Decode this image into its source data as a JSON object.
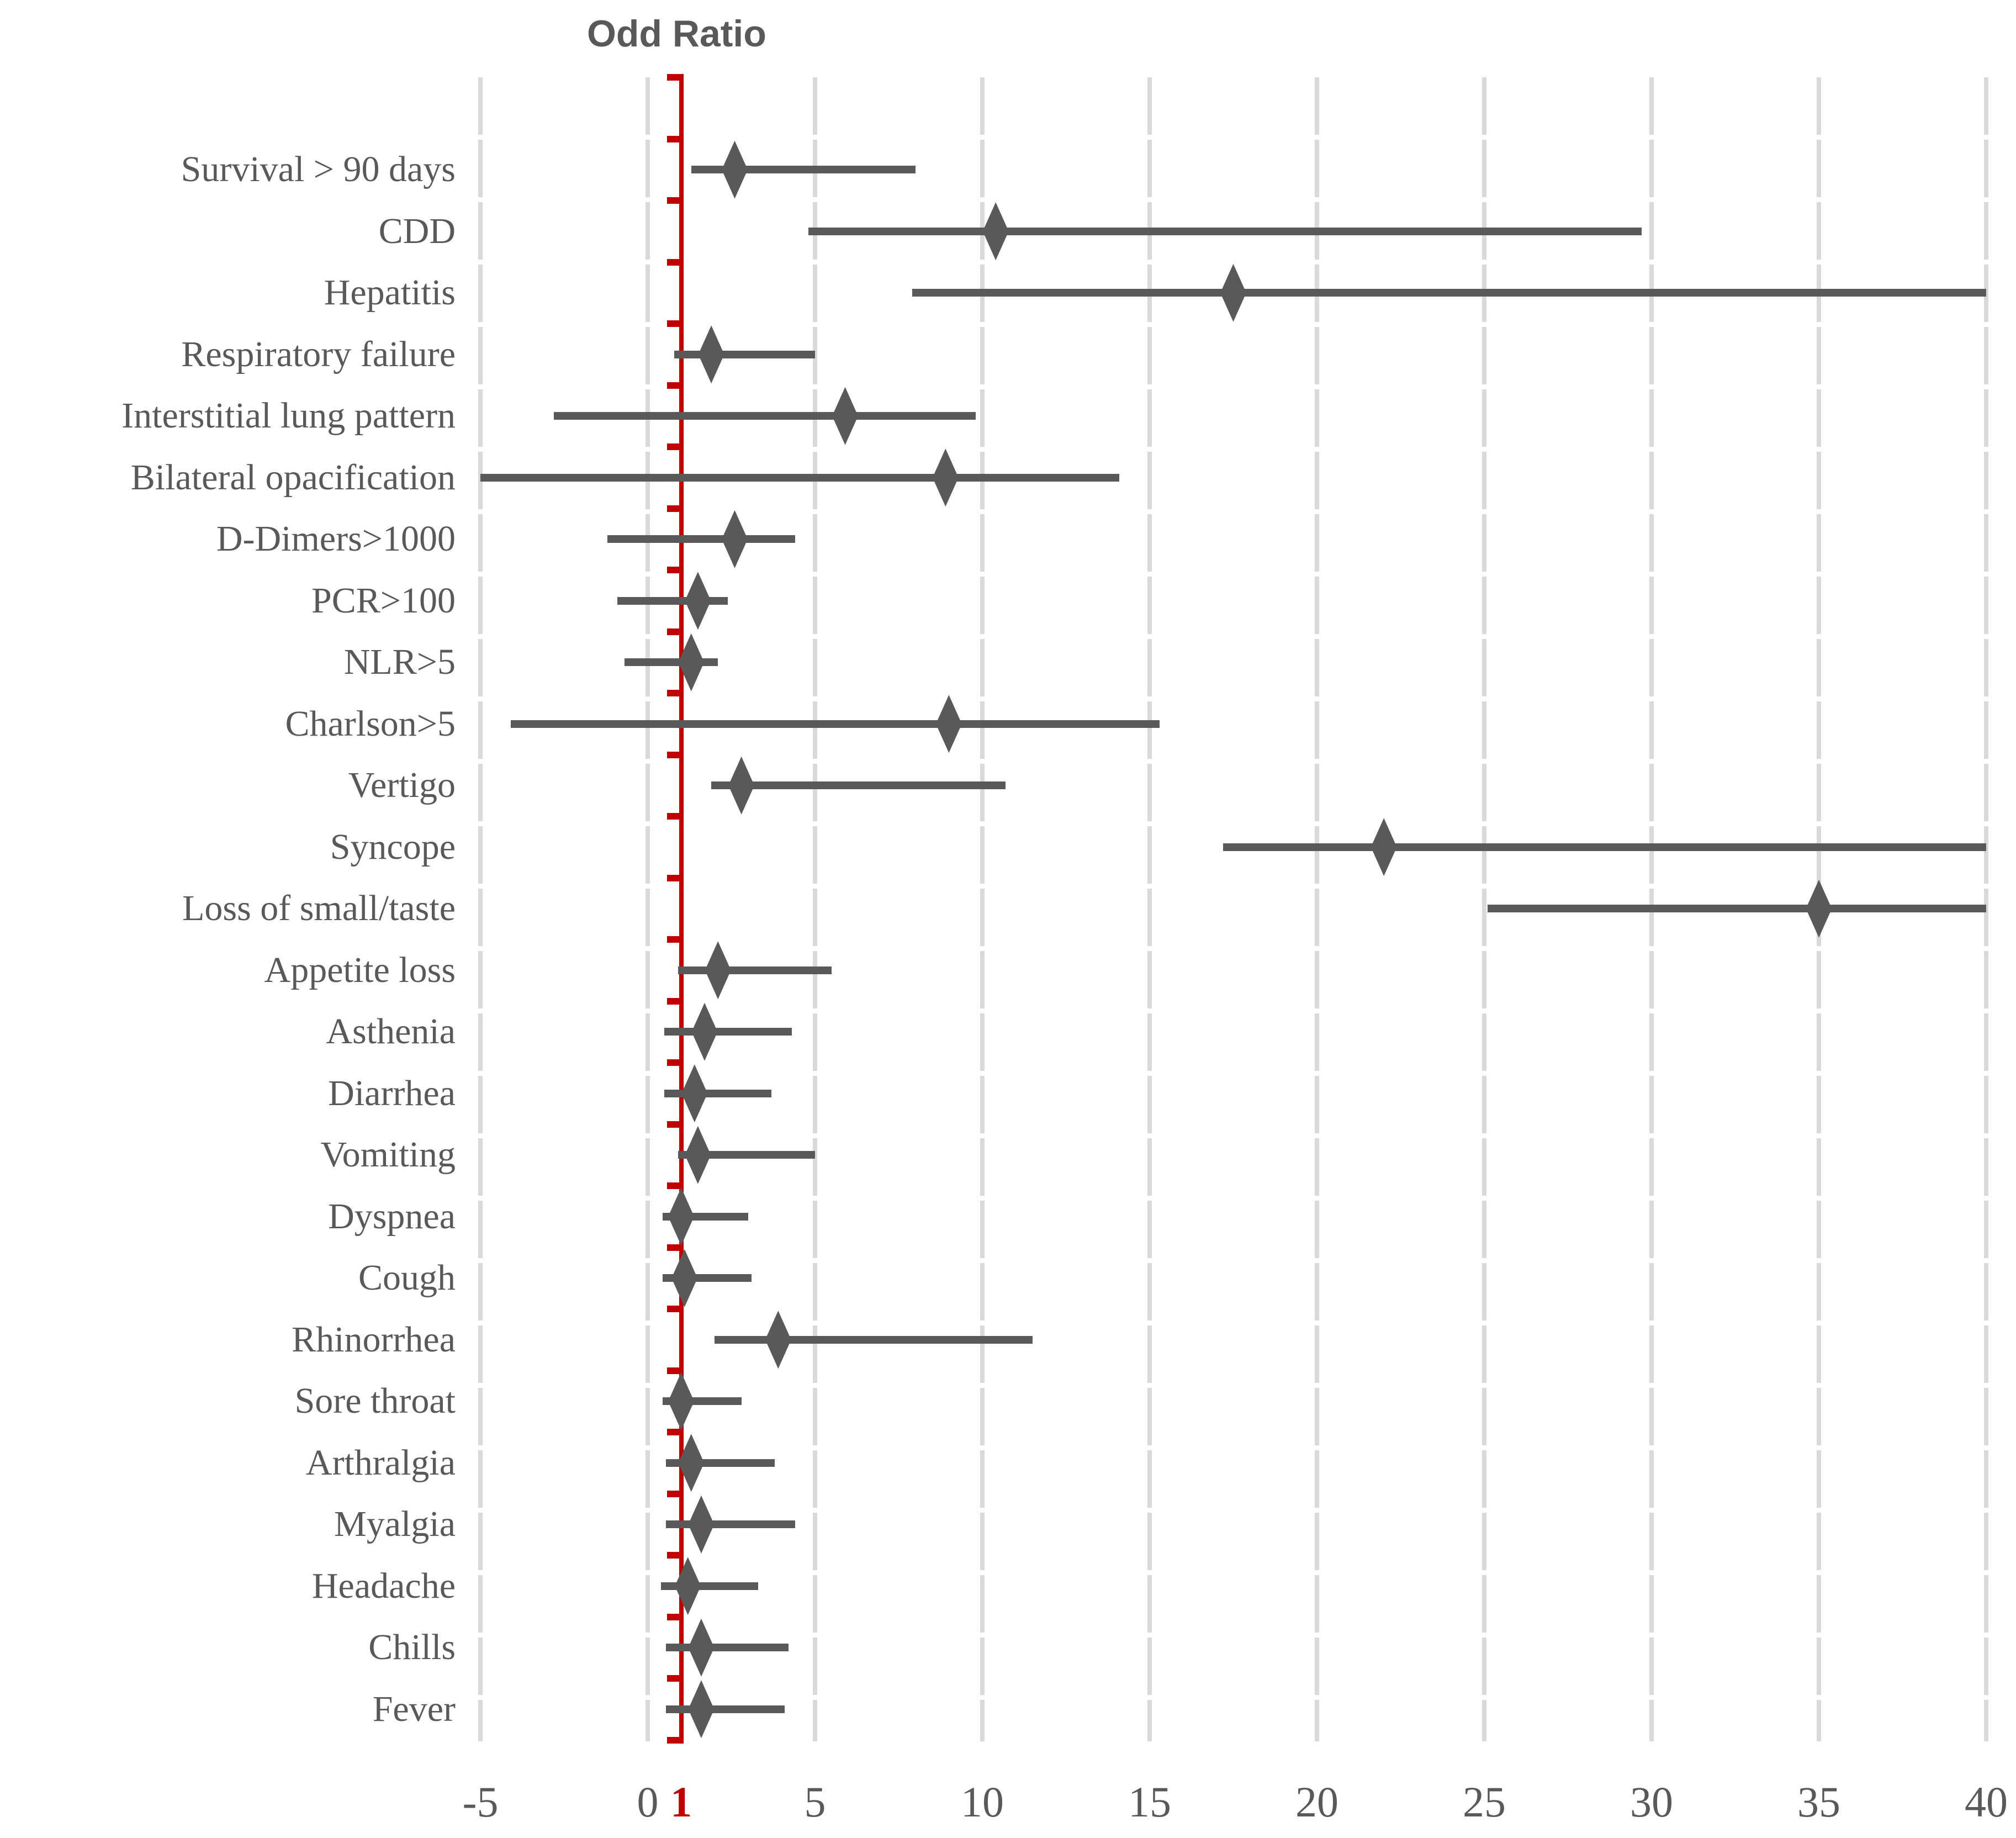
{
  "chart_data": {
    "type": "scatter",
    "subtype": "forest-plot",
    "title": "Odd Ratio",
    "xlabel": "",
    "ylabel": "",
    "xlim": [
      -5,
      40
    ],
    "grid": "vertical-only",
    "gridline_values": [
      -5,
      0,
      5,
      10,
      15,
      20,
      25,
      30,
      35,
      40
    ],
    "reference_line_value": 1,
    "x_ticks": [
      {
        "label": "-5",
        "value": -5,
        "highlight": false
      },
      {
        "label": "0",
        "value": 0,
        "highlight": false
      },
      {
        "label": "1",
        "value": 1,
        "highlight": true
      },
      {
        "label": "5",
        "value": 5,
        "highlight": false
      },
      {
        "label": "10",
        "value": 10,
        "highlight": false
      },
      {
        "label": "15",
        "value": 15,
        "highlight": false
      },
      {
        "label": "20",
        "value": 20,
        "highlight": false
      },
      {
        "label": "25",
        "value": 25,
        "highlight": false
      },
      {
        "label": "30",
        "value": 30,
        "highlight": false
      },
      {
        "label": "35",
        "value": 35,
        "highlight": false
      },
      {
        "label": "40",
        "value": 40,
        "highlight": false
      }
    ],
    "categories": [
      "Survival > 90 days",
      "CDD",
      "Hepatitis",
      "Respiratory failure",
      "Interstitial lung pattern",
      "Bilateral opacification",
      "D-Dimers>1000",
      "PCR>100",
      "NLR>5",
      "Charlson>5",
      "Vertigo",
      "Syncope",
      "Loss of small/taste",
      "Appetite loss",
      "Asthenia",
      "Diarrhea",
      "Vomiting",
      "Dyspnea",
      "Cough",
      "Rhinorrhea",
      "Sore throat",
      "Arthralgia",
      "Myalgia",
      "Headache",
      "Chills",
      "Fever"
    ],
    "series": [
      {
        "name": "Odds Ratio (diamond) with confidence interval (bar)",
        "odds_ratio": [
          2.6,
          10.4,
          17.5,
          1.9,
          5.9,
          8.9,
          2.6,
          1.5,
          1.3,
          9.0,
          2.8,
          22.0,
          35.0,
          2.1,
          1.7,
          1.4,
          1.5,
          1.0,
          1.1,
          3.9,
          1.0,
          1.3,
          1.6,
          1.2,
          1.6,
          1.6
        ],
        "ci_low": [
          1.3,
          4.8,
          7.9,
          0.8,
          -2.8,
          -5.0,
          -1.2,
          -0.9,
          -0.7,
          -4.1,
          1.9,
          17.2,
          25.1,
          0.9,
          0.5,
          0.5,
          0.9,
          0.45,
          0.45,
          2.0,
          0.45,
          0.55,
          0.55,
          0.4,
          0.55,
          0.55
        ],
        "ci_high": [
          8.0,
          29.7,
          40,
          5.0,
          9.8,
          14.1,
          4.4,
          2.4,
          2.1,
          15.3,
          10.7,
          40,
          40,
          5.5,
          4.3,
          3.7,
          5.0,
          3.0,
          3.1,
          11.5,
          2.8,
          3.8,
          4.4,
          3.3,
          4.2,
          4.1
        ]
      }
    ],
    "legend": "none",
    "colors": {
      "marker": "#595959",
      "ci_bar": "#595959",
      "gridline": "#d9d9d9",
      "reference_line": "#c00000",
      "text": "#595959",
      "highlight_text": "#c00000",
      "background": "#ffffff"
    }
  }
}
